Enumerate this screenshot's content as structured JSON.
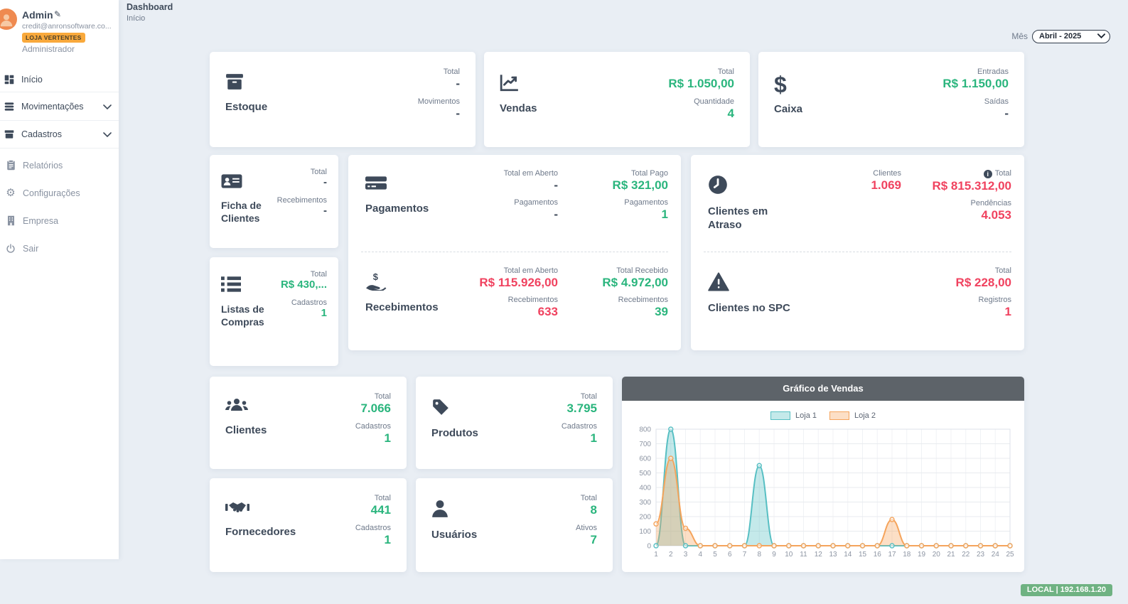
{
  "page": {
    "breadcrumb_title": "Dashboard",
    "breadcrumb_sub": "Início"
  },
  "filters": {
    "month_label": "Mês",
    "month_value": "Abril - 2025"
  },
  "sidebar": {
    "user": {
      "name": "Admin",
      "email": "credit@anronsoftware.co...",
      "store_badge": "LOJA VERTENTES",
      "role": "Administrador"
    },
    "menu": {
      "inicio": "Início",
      "movimentacoes": "Movimentações",
      "cadastros": "Cadastros",
      "relatorios": "Relatórios",
      "configuracoes": "Configurações",
      "empresa": "Empresa",
      "sair": "Sair"
    }
  },
  "cards": {
    "estoque": {
      "title": "Estoque",
      "stats": [
        {
          "label": "Total",
          "value": "-"
        },
        {
          "label": "Movimentos",
          "value": "-"
        }
      ]
    },
    "vendas": {
      "title": "Vendas",
      "stats": [
        {
          "label": "Total",
          "value": "R$ 1.050,00"
        },
        {
          "label": "Quantidade",
          "value": "4"
        }
      ]
    },
    "caixa": {
      "title": "Caixa",
      "stats": [
        {
          "label": "Entradas",
          "value": "R$ 1.150,00"
        },
        {
          "label": "Saídas",
          "value": "-"
        }
      ]
    },
    "ficha": {
      "title": "Ficha de Clientes",
      "stats": [
        {
          "label": "Total",
          "value": "-"
        },
        {
          "label": "Recebimentos",
          "value": "-"
        }
      ]
    },
    "listas": {
      "title": "Listas de Compras",
      "stats": [
        {
          "label": "Total",
          "value": "R$ 430,..."
        },
        {
          "label": "Cadastros",
          "value": "1"
        }
      ]
    },
    "pagamentos": {
      "title": "Pagamentos",
      "col_a": [
        {
          "label": "Total em Aberto",
          "value": "-"
        },
        {
          "label": "Pagamentos",
          "value": "-"
        }
      ],
      "col_b": [
        {
          "label": "Total Pago",
          "value": "R$ 321,00"
        },
        {
          "label": "Pagamentos",
          "value": "1"
        }
      ]
    },
    "recebimentos": {
      "title": "Recebimentos",
      "col_a": [
        {
          "label": "Total em Aberto",
          "value": "R$ 115.926,00"
        },
        {
          "label": "Recebimentos",
          "value": "633"
        }
      ],
      "col_b": [
        {
          "label": "Total Recebido",
          "value": "R$ 4.972,00"
        },
        {
          "label": "Recebimentos",
          "value": "39"
        }
      ]
    },
    "atraso": {
      "title": "Clientes em Atraso",
      "col_a": [
        {
          "label": "Clientes",
          "value": "1.069"
        }
      ],
      "col_b": [
        {
          "label": "Total",
          "value": "R$ 815.312,00"
        },
        {
          "label": "Pendências",
          "value": "4.053"
        }
      ]
    },
    "spc": {
      "title": "Clientes no SPC",
      "col_b": [
        {
          "label": "Total",
          "value": "R$ 228,00"
        },
        {
          "label": "Registros",
          "value": "1"
        }
      ]
    },
    "clientes": {
      "title": "Clientes",
      "stats": [
        {
          "label": "Total",
          "value": "7.066"
        },
        {
          "label": "Cadastros",
          "value": "1"
        }
      ]
    },
    "produtos": {
      "title": "Produtos",
      "stats": [
        {
          "label": "Total",
          "value": "3.795"
        },
        {
          "label": "Cadastros",
          "value": "1"
        }
      ]
    },
    "fornecedores": {
      "title": "Fornecedores",
      "stats": [
        {
          "label": "Total",
          "value": "441"
        },
        {
          "label": "Cadastros",
          "value": "1"
        }
      ]
    },
    "usuarios": {
      "title": "Usuários",
      "stats": [
        {
          "label": "Total",
          "value": "8"
        },
        {
          "label": "Ativos",
          "value": "7"
        }
      ]
    }
  },
  "chart_data": {
    "type": "area",
    "title": "Gráfico de Vendas",
    "x": [
      1,
      2,
      3,
      4,
      5,
      6,
      7,
      8,
      9,
      10,
      11,
      12,
      13,
      14,
      15,
      16,
      17,
      18,
      19,
      20,
      21,
      22,
      23,
      24,
      25
    ],
    "series": [
      {
        "name": "Loja 1",
        "color": "#57bfc3",
        "fill": "rgba(87,191,195,0.35)",
        "values": [
          0,
          800,
          0,
          0,
          0,
          0,
          0,
          550,
          0,
          0,
          0,
          0,
          0,
          0,
          0,
          0,
          0,
          0,
          0,
          0,
          0,
          0,
          0,
          0,
          0
        ]
      },
      {
        "name": "Loja 2",
        "color": "#f5a45c",
        "fill": "rgba(245,164,92,0.35)",
        "values": [
          150,
          600,
          120,
          0,
          0,
          0,
          0,
          0,
          0,
          0,
          0,
          0,
          0,
          0,
          0,
          0,
          180,
          0,
          0,
          0,
          0,
          0,
          0,
          0,
          0
        ]
      }
    ],
    "ylim": [
      0,
      800
    ],
    "ytick": 100,
    "grid": true,
    "legend_position": "top"
  },
  "colors": {
    "positive_green": "#2ab57d",
    "negative_red": "#f0425f",
    "dark_text": "#3e4a5a",
    "badge_orange": "#f9a93c",
    "chart_header": "#5d6369",
    "env_badge_green": "#6fb282"
  },
  "footer": {
    "env_label": "LOCAL | 192.168.1.20"
  }
}
